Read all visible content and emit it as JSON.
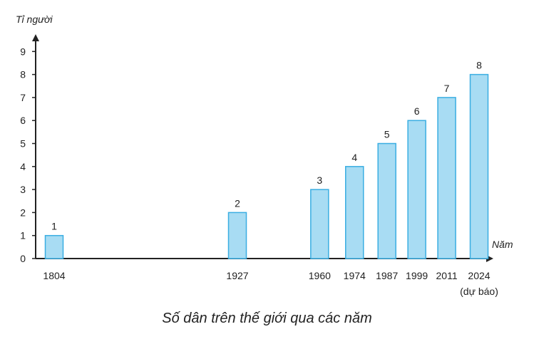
{
  "chart_data": {
    "type": "bar",
    "title": "Số dân trên thế giới qua các năm",
    "xlabel": "Năm",
    "ylabel": "Tỉ người",
    "categories": [
      "1804",
      "1927",
      "1960",
      "1974",
      "1987",
      "1999",
      "2011",
      "2024"
    ],
    "category_notes": [
      "",
      "",
      "",
      "",
      "",
      "",
      "",
      "(dự báo)"
    ],
    "values": [
      1,
      2,
      3,
      4,
      5,
      6,
      7,
      8
    ],
    "yticks": [
      0,
      1,
      2,
      3,
      4,
      5,
      6,
      7,
      8,
      9
    ],
    "ylim": [
      0,
      9
    ],
    "grid": false,
    "bar_color": "#a8dcf3",
    "bar_edge_color": "#3aaee2",
    "axis_color": "#222222"
  }
}
